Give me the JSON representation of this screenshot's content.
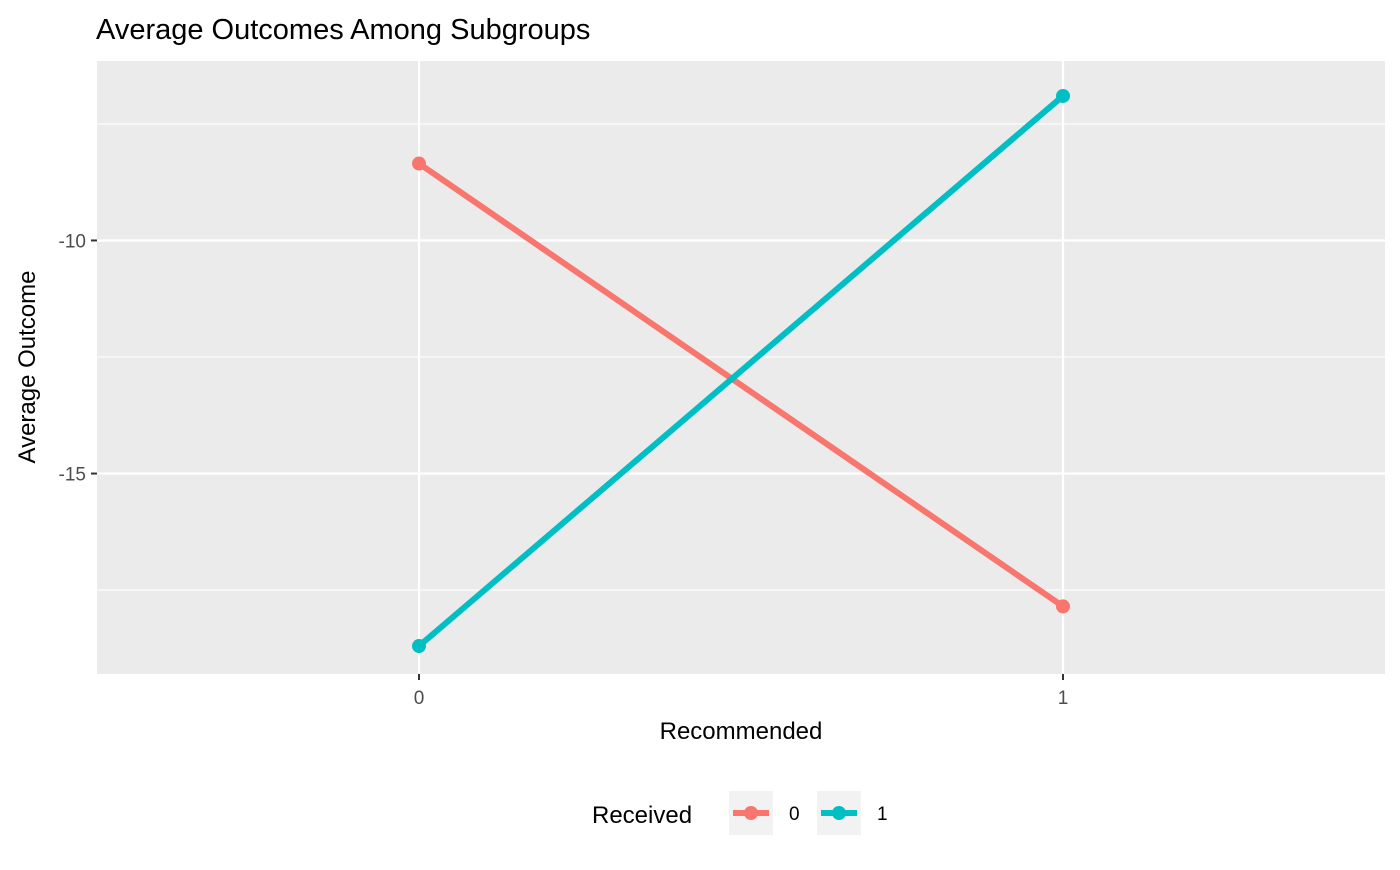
{
  "chart_data": {
    "type": "line",
    "title": "Average Outcomes Among Subgroups",
    "xlabel": "Recommended",
    "ylabel": "Average Outcome",
    "categories": [
      "0",
      "1"
    ],
    "x": [
      0,
      1
    ],
    "xlim": [
      -0.5,
      1.5
    ],
    "ylim": [
      -19.3,
      -6.15
    ],
    "yticks": [
      -10,
      -15
    ],
    "ytick_labels": [
      "-10",
      "-15"
    ],
    "ygrid_minor": [
      -7.5,
      -12.5,
      -17.5
    ],
    "grid": true,
    "legend": {
      "title": "Received",
      "placement": "bottom",
      "entries": [
        "0",
        "1"
      ]
    },
    "series": [
      {
        "name": "0",
        "color": "#F8766D",
        "values": [
          -8.35,
          -17.85
        ]
      },
      {
        "name": "1",
        "color": "#00BFC4",
        "values": [
          -18.7,
          -6.9
        ]
      }
    ]
  }
}
